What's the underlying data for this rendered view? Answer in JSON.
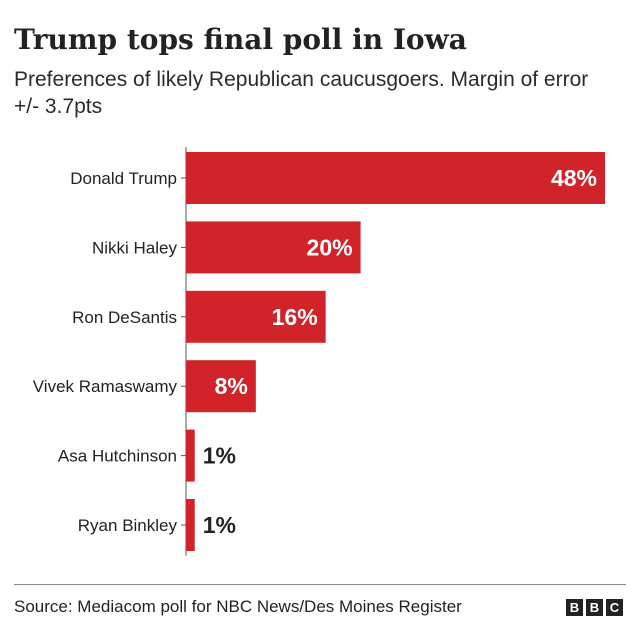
{
  "header": {
    "title": "Trump tops final poll in Iowa",
    "subtitle": "Preferences of likely Republican caucusgoers. Margin of error +/- 3.7pts"
  },
  "chart_data": {
    "type": "bar",
    "orientation": "horizontal",
    "categories": [
      "Donald Trump",
      "Nikki Haley",
      "Ron DeSantis",
      "Vivek Ramaswamy",
      "Asa Hutchinson",
      "Ryan Binkley"
    ],
    "values": [
      48,
      20,
      16,
      8,
      1,
      1
    ],
    "value_labels": [
      "48%",
      "20%",
      "16%",
      "8%",
      "1%",
      "1%"
    ],
    "xlim": [
      0,
      48
    ],
    "grid": false,
    "bar_color": "#d1232a"
  },
  "footer": {
    "source": "Source: Mediacom poll for NBC News/Des Moines Register",
    "logo_letters": [
      "B",
      "B",
      "C"
    ]
  }
}
